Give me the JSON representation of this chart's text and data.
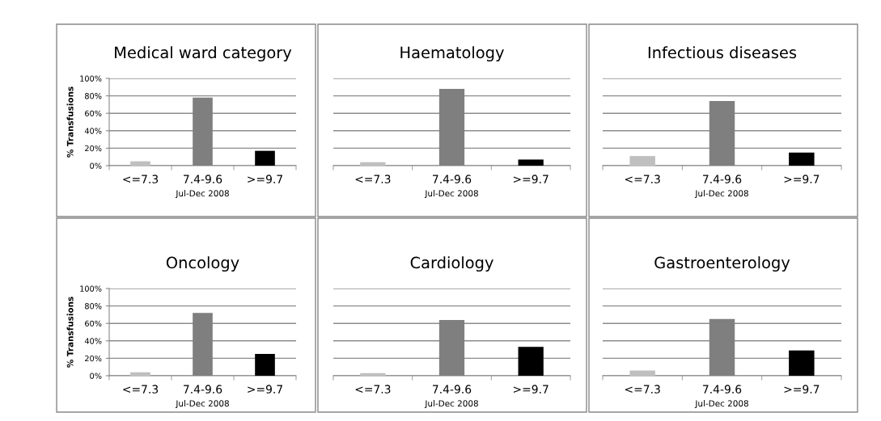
{
  "chart_data": [
    {
      "type": "bar",
      "title": "Medical ward category",
      "xlabel": "Jul-Dec 2008",
      "ylabel": "% Transfusions",
      "categories": [
        "<=7.3",
        "7.4-9.6",
        ">=9.7"
      ],
      "values": [
        5,
        78,
        17
      ],
      "colors": [
        "#bfbfbf",
        "#7f7f7f",
        "#000000"
      ],
      "ylim": [
        0,
        100
      ],
      "yticks": [
        {
          "value": 0,
          "label": "0%"
        },
        {
          "value": 20,
          "label": "20%"
        },
        {
          "value": 40,
          "label": "40%"
        },
        {
          "value": 60,
          "label": "60%"
        },
        {
          "value": 80,
          "label": "80%"
        },
        {
          "value": 100,
          "label": "100%"
        }
      ],
      "grid": "y"
    },
    {
      "type": "bar",
      "title": "Haematology",
      "xlabel": "Jul-Dec 2008",
      "categories": [
        "<=7.3",
        "7.4-9.6",
        ">=9.7"
      ],
      "values": [
        4,
        88,
        7
      ],
      "colors": [
        "#bfbfbf",
        "#7f7f7f",
        "#000000"
      ],
      "ylim": [
        0,
        100
      ],
      "yticks": [
        0,
        20,
        40,
        60,
        80,
        100
      ],
      "grid": "y",
      "tick_labels": "x"
    },
    {
      "type": "bar",
      "title": "Infectious diseases",
      "xlabel": "Jul-Dec 2008",
      "categories": [
        "<=7.3",
        "7.4-9.6",
        ">=9.7"
      ],
      "values": [
        11,
        74,
        15
      ],
      "colors": [
        "#bfbfbf",
        "#7f7f7f",
        "#000000"
      ],
      "ylim": [
        0,
        100
      ],
      "yticks": [
        0,
        20,
        40,
        60,
        80,
        100
      ],
      "grid": "y",
      "tick_labels": "x"
    },
    {
      "type": "bar",
      "title": "Oncology",
      "xlabel": "Jul-Dec 2008",
      "ylabel": "% Transfusions",
      "categories": [
        "<=7.3",
        "7.4-9.6",
        ">=9.7"
      ],
      "values": [
        4,
        72,
        25
      ],
      "colors": [
        "#bfbfbf",
        "#7f7f7f",
        "#000000"
      ],
      "ylim": [
        0,
        100
      ],
      "yticks": [
        {
          "value": 0,
          "label": "0%"
        },
        {
          "value": 20,
          "label": "20%"
        },
        {
          "value": 40,
          "label": "40%"
        },
        {
          "value": 60,
          "label": "60%"
        },
        {
          "value": 80,
          "label": "80%"
        },
        {
          "value": 100,
          "label": "100%"
        }
      ],
      "grid": "y"
    },
    {
      "type": "bar",
      "title": "Cardiology",
      "xlabel": "Jul-Dec 2008",
      "categories": [
        "<=7.3",
        "7.4-9.6",
        ">=9.7"
      ],
      "values": [
        3,
        64,
        33
      ],
      "colors": [
        "#bfbfbf",
        "#7f7f7f",
        "#000000"
      ],
      "ylim": [
        0,
        100
      ],
      "yticks": [
        0,
        20,
        40,
        60,
        80,
        100
      ],
      "grid": "y",
      "tick_labels": "x"
    },
    {
      "type": "bar",
      "title": "Gastroenterology",
      "xlabel": "Jul-Dec 2008",
      "categories": [
        "<=7.3",
        "7.4-9.6",
        ">=9.7"
      ],
      "values": [
        6,
        65,
        29
      ],
      "colors": [
        "#bfbfbf",
        "#7f7f7f",
        "#000000"
      ],
      "ylim": [
        0,
        100
      ],
      "yticks": [
        0,
        20,
        40,
        60,
        80,
        100
      ],
      "grid": "y",
      "tick_labels": "x"
    }
  ]
}
